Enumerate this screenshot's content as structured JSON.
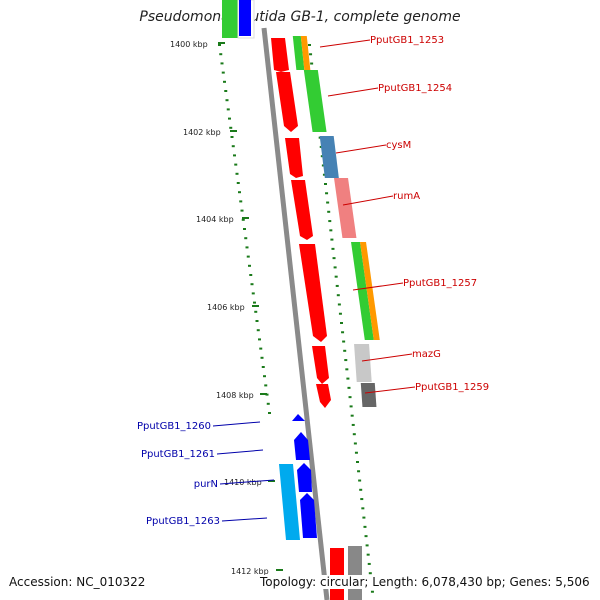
{
  "title": "Pseudomonas putida GB-1, complete genome",
  "footer": {
    "accession": "Accession: NC_010322",
    "summary": "Topology: circular; Length: 6,078,430 bp; Genes: 5,506"
  },
  "ticks": [
    "1400 kbp",
    "1402 kbp",
    "1404 kbp",
    "1406 kbp",
    "1408 kbp",
    "1410 kbp",
    "1412 kbp"
  ],
  "genes_right": [
    {
      "label": "PputGB1_1253"
    },
    {
      "label": "PputGB1_1254"
    },
    {
      "label": "cysM"
    },
    {
      "label": "rumA"
    },
    {
      "label": "PputGB1_1257"
    },
    {
      "label": "mazG"
    },
    {
      "label": "PputGB1_1259"
    }
  ],
  "genes_left": [
    {
      "label": "PputGB1_1260"
    },
    {
      "label": "PputGB1_1261"
    },
    {
      "label": "purN"
    },
    {
      "label": "PputGB1_1263"
    }
  ],
  "colors": {
    "backbone": "#8a8a8a",
    "cds_forward": "#ff0000",
    "cds_reverse": "#0000ff",
    "label_forward": "#cc0000",
    "label_reverse": "#0000aa",
    "gc_skew_dots": "#1a7a1a"
  }
}
